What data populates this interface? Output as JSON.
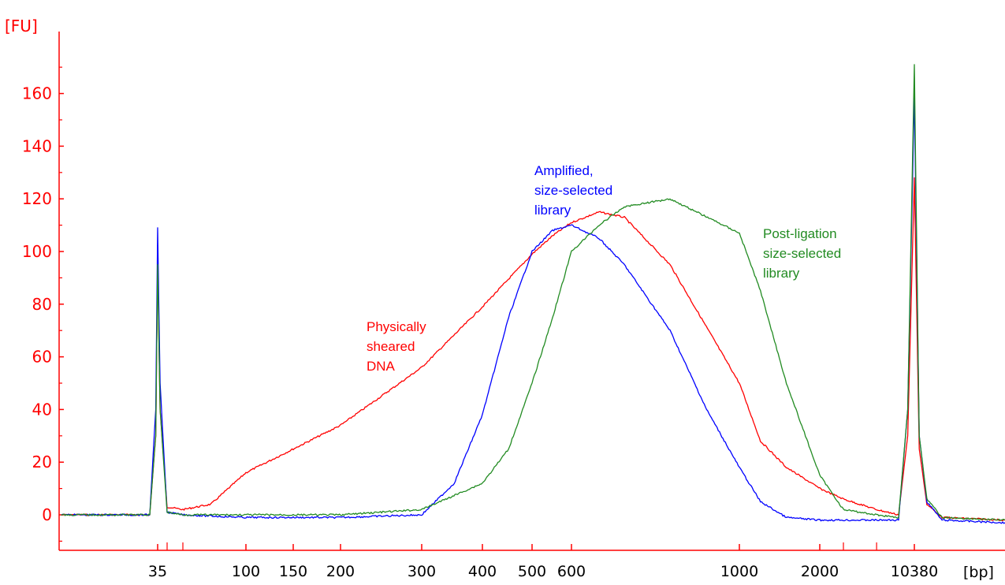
{
  "chart_data": {
    "type": "line",
    "x_unit_label": "[bp]",
    "y_unit_label": "[FU]",
    "x_ticks": [
      "35",
      "100",
      "150",
      "200",
      "300",
      "400",
      "500",
      "600",
      "1000",
      "2000",
      "10380"
    ],
    "y_ticks": [
      "0",
      "20",
      "40",
      "60",
      "80",
      "100",
      "120",
      "140",
      "160"
    ],
    "ylim": [
      -12,
      190
    ],
    "grid": false,
    "legend": "none",
    "annotations": [
      {
        "lines": [
          "Physically",
          "sheared",
          "DNA"
        ],
        "color": "#ff0000"
      },
      {
        "lines": [
          "Amplified,",
          "size-selected",
          "library"
        ],
        "color": "#0000ff"
      },
      {
        "lines": [
          "Post-ligation",
          "size-selected",
          "library"
        ],
        "color": "#228b22"
      }
    ],
    "x_scale": "nonlinear-tick-mapped",
    "series": [
      {
        "color": "#ff0000",
        "x_bp": [
          20,
          33,
          34.5,
          35,
          35.5,
          37,
          40,
          60,
          100,
          150,
          200,
          300,
          400,
          500,
          550,
          600,
          650,
          700,
          800,
          1000,
          1200,
          1500,
          2000,
          3000,
          6000,
          9500,
          10000,
          10380,
          10800,
          11500,
          13000,
          20000
        ],
        "y": [
          0,
          0,
          30,
          97,
          40,
          3,
          2,
          4,
          16,
          25,
          34,
          56,
          79,
          99,
          106,
          111,
          115,
          113,
          95,
          50,
          28,
          18,
          10,
          6,
          2,
          0,
          30,
          128,
          25,
          4,
          -1,
          -2
        ]
      },
      {
        "color": "#0000ff",
        "x_bp": [
          20,
          33,
          34.5,
          35,
          35.5,
          37,
          40,
          100,
          200,
          300,
          350,
          400,
          450,
          500,
          550,
          600,
          650,
          700,
          800,
          900,
          1000,
          1200,
          1500,
          2000,
          3000,
          6000,
          9500,
          10000,
          10380,
          10800,
          11500,
          13000,
          20000
        ],
        "y": [
          0,
          0,
          40,
          109,
          50,
          1,
          0,
          -1,
          -1,
          0,
          12,
          38,
          75,
          100,
          108,
          110,
          105,
          95,
          70,
          40,
          18,
          5,
          -1,
          -2,
          -2,
          -2,
          -2,
          40,
          160,
          30,
          5,
          -2,
          -3
        ]
      },
      {
        "color": "#228b22",
        "x_bp": [
          20,
          33,
          34.5,
          35,
          35.5,
          37,
          40,
          100,
          200,
          300,
          400,
          450,
          500,
          550,
          600,
          650,
          700,
          800,
          1000,
          1200,
          1500,
          2000,
          3000,
          6000,
          9500,
          10000,
          10380,
          10800,
          11500,
          13000,
          20000
        ],
        "y": [
          0,
          0,
          30,
          95,
          40,
          1,
          0,
          0,
          0,
          2,
          12,
          25,
          50,
          75,
          100,
          110,
          117,
          120,
          107,
          85,
          50,
          15,
          2,
          0,
          -1,
          40,
          171,
          30,
          6,
          -1,
          -2
        ]
      }
    ]
  }
}
